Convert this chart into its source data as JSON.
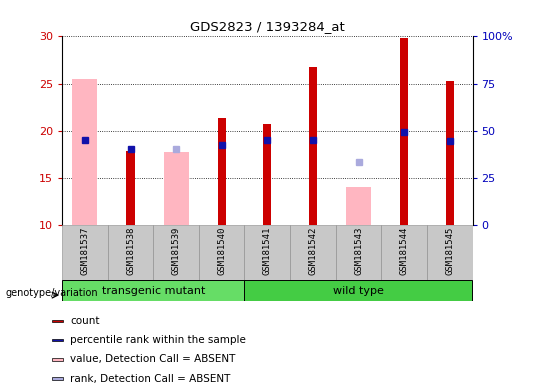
{
  "title": "GDS2823 / 1393284_at",
  "samples": [
    "GSM181537",
    "GSM181538",
    "GSM181539",
    "GSM181540",
    "GSM181541",
    "GSM181542",
    "GSM181543",
    "GSM181544",
    "GSM181545"
  ],
  "ylim": [
    10,
    30
  ],
  "ylim_right": [
    0,
    100
  ],
  "yticks_left": [
    10,
    15,
    20,
    25,
    30
  ],
  "yticks_right": [
    0,
    25,
    50,
    75,
    100
  ],
  "groups": [
    {
      "label": "transgenic mutant",
      "samples": [
        0,
        1,
        2,
        3
      ],
      "color": "#66DD66"
    },
    {
      "label": "wild type",
      "samples": [
        4,
        5,
        6,
        7,
        8
      ],
      "color": "#44CC44"
    }
  ],
  "red_bars": [
    null,
    17.8,
    null,
    21.3,
    20.7,
    26.8,
    null,
    29.8,
    25.3
  ],
  "pink_bars": [
    25.5,
    null,
    17.7,
    null,
    null,
    null,
    14.0,
    null,
    null
  ],
  "blue_squares": [
    19.0,
    18.0,
    null,
    18.5,
    19.0,
    19.0,
    null,
    19.8,
    18.9
  ],
  "lightblue_squares": [
    null,
    null,
    18.0,
    null,
    null,
    null,
    16.7,
    null,
    null
  ],
  "red_color": "#CC0000",
  "pink_color": "#FFB6C1",
  "blue_color": "#1111AA",
  "lightblue_color": "#AAAADD",
  "gray_bg": "#C8C8C8",
  "left_tick_color": "#CC0000",
  "right_tick_color": "#0000BB",
  "legend_items": [
    {
      "color": "#CC0000",
      "label": "count"
    },
    {
      "color": "#1111AA",
      "label": "percentile rank within the sample"
    },
    {
      "color": "#FFB6C1",
      "label": "value, Detection Call = ABSENT"
    },
    {
      "color": "#AAAADD",
      "label": "rank, Detection Call = ABSENT"
    }
  ],
  "genotype_label": "genotype/variation"
}
